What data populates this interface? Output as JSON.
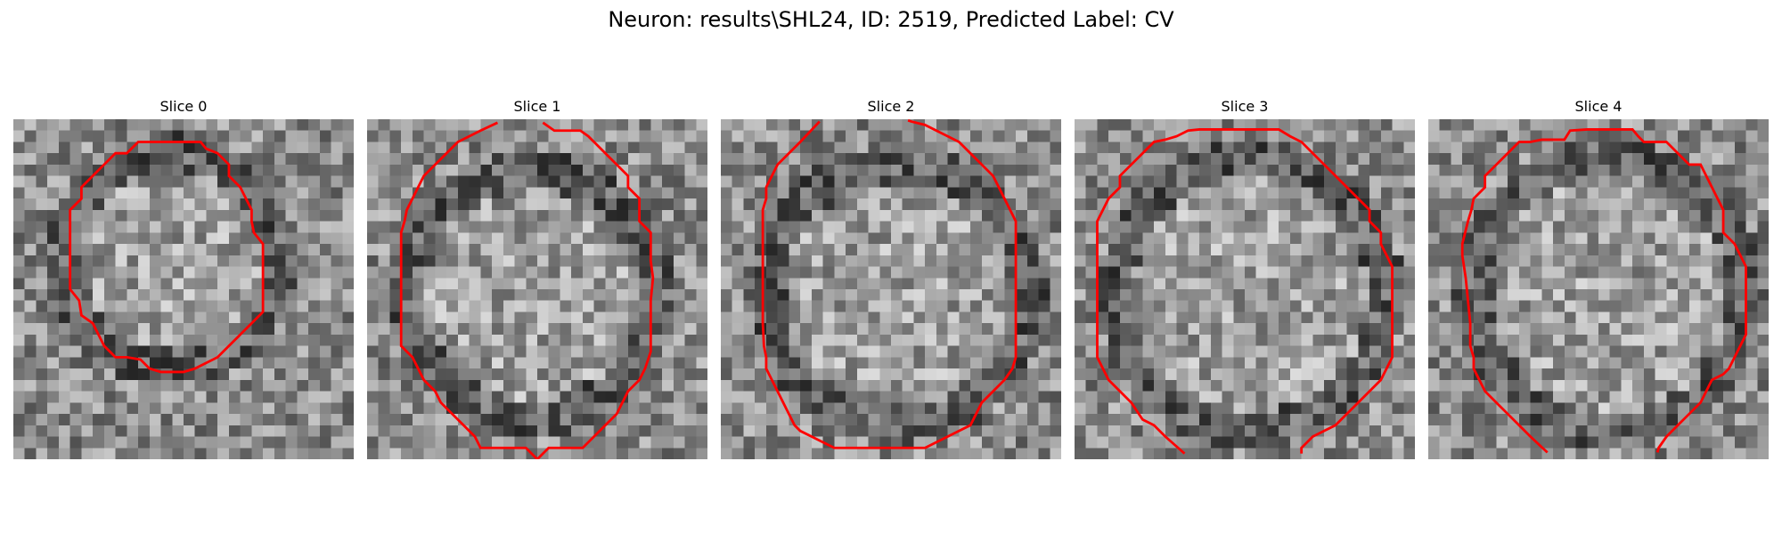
{
  "title": "Neuron: results\\SHL24, ID: 2519, Predicted Label: CV",
  "slices": [
    {
      "label": "Slice 0",
      "contour_color": "#ff0000"
    },
    {
      "label": "Slice 1",
      "contour_color": "#ff0000"
    },
    {
      "label": "Slice 2",
      "contour_color": "#ff0000"
    },
    {
      "label": "Slice 3",
      "contour_color": "#ff0000"
    },
    {
      "label": "Slice 4",
      "contour_color": "#ff0000"
    }
  ]
}
